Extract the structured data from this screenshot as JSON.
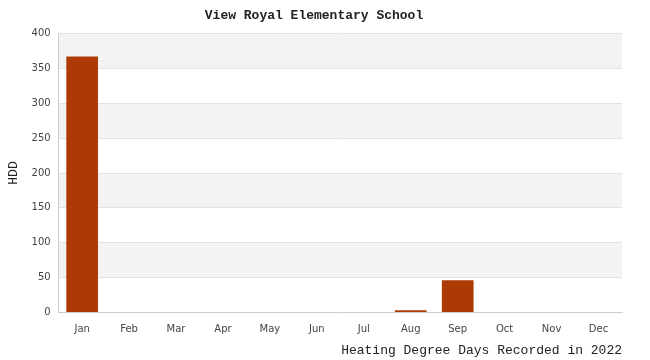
{
  "chart_data": {
    "type": "bar",
    "title": "View Royal Elementary School",
    "y_label": "HDD",
    "x_label": "Heating Degree Days Recorded in 2022",
    "categories": [
      "Jan",
      "Feb",
      "Mar",
      "Apr",
      "May",
      "Jun",
      "Jul",
      "Aug",
      "Sep",
      "Oct",
      "Nov",
      "Dec"
    ],
    "values": [
      367,
      0,
      0,
      0,
      0,
      0,
      0,
      3,
      46,
      0,
      0,
      0
    ],
    "color": "#ad3a05",
    "ylim": [
      0,
      400
    ],
    "yticks": [
      0,
      50,
      100,
      150,
      200,
      250,
      300,
      350,
      400
    ],
    "grid": true
  }
}
